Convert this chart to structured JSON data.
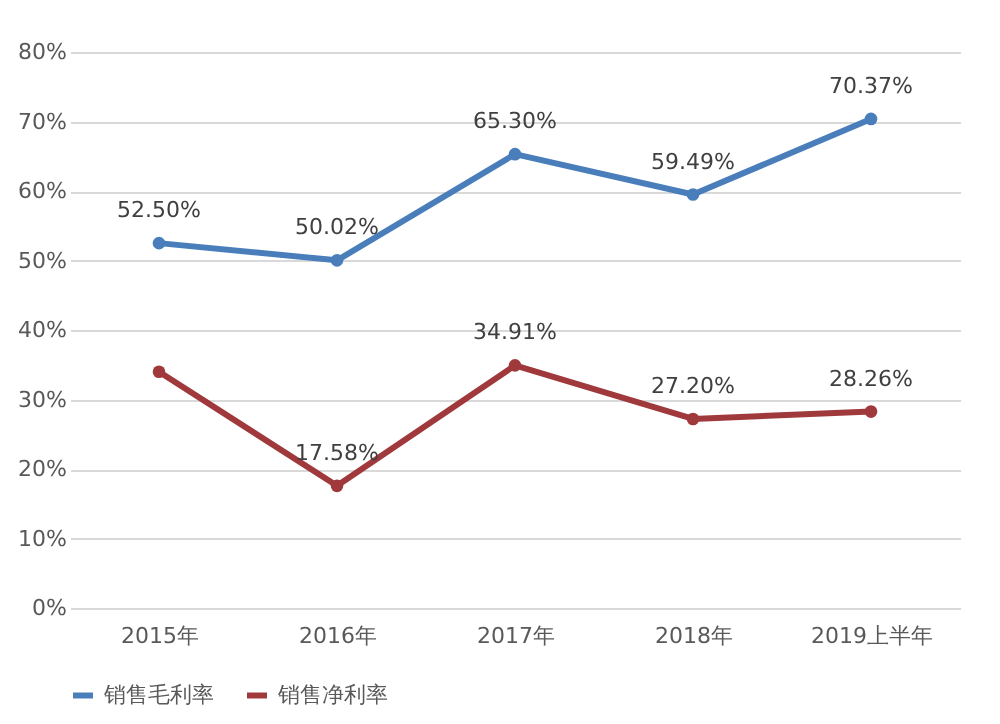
{
  "chart_data": {
    "type": "line",
    "categories": [
      "2015年",
      "2016年",
      "2017年",
      "2018年",
      "2019上半年"
    ],
    "series": [
      {
        "name": "销售毛利率",
        "color": "#4a7ebb",
        "values": [
          52.5,
          50.02,
          65.3,
          59.49,
          70.37
        ],
        "value_labels": [
          "52.50%",
          "50.02%",
          "65.30%",
          "59.49%",
          "70.37%"
        ]
      },
      {
        "name": "销售净利率",
        "color": "#a0393c",
        "values": [
          34,
          17.58,
          34.91,
          27.2,
          28.26
        ],
        "value_labels": [
          null,
          "17.58%",
          "34.91%",
          "27.20%",
          "28.26%"
        ]
      }
    ],
    "ylim": [
      0,
      80
    ],
    "yticks": [
      {
        "value": 0,
        "label": "0%"
      },
      {
        "value": 10,
        "label": "10%"
      },
      {
        "value": 20,
        "label": "20%"
      },
      {
        "value": 30,
        "label": "30%"
      },
      {
        "value": 40,
        "label": "40%"
      },
      {
        "value": 50,
        "label": "50%"
      },
      {
        "value": 60,
        "label": "60%"
      },
      {
        "value": 70,
        "label": "70%"
      },
      {
        "value": 80,
        "label": "80%"
      }
    ],
    "grid": "y",
    "legend": "bottom",
    "marker": "circle",
    "line_style": "solid"
  }
}
